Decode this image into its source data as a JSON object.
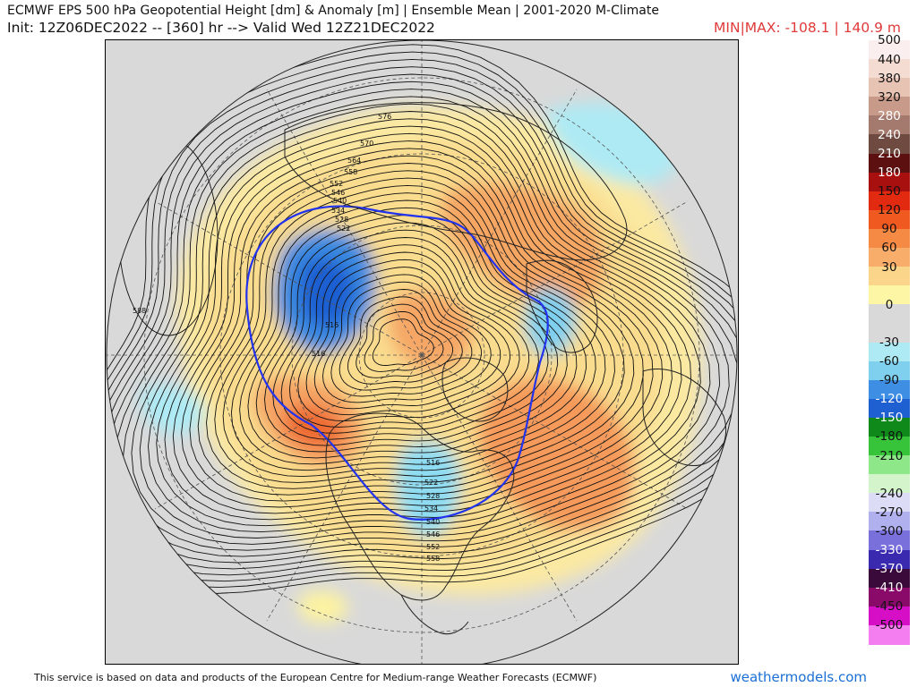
{
  "header": {
    "title": "ECMWF EPS 500 hPa Geopotential Height [dm] & Anomaly [m] | Ensemble Mean | 2001-2020 M-Climate",
    "subtitle": "Init: 12Z06DEC2022 -- [360] hr --> Valid Wed 12Z21DEC2022",
    "minmax": "MIN|MAX: -108.1 | 140.9 m"
  },
  "map": {
    "projection": "north-polar-stereographic",
    "contour_labels": [
      "576",
      "570",
      "564",
      "558",
      "552",
      "546",
      "540",
      "534",
      "528",
      "522",
      "516",
      "588",
      "516",
      "522",
      "528",
      "534",
      "540",
      "546",
      "552",
      "558",
      "516"
    ],
    "colors": {
      "background": "#d9d9d9",
      "land_outline": "#222222",
      "height_contours": "#111111",
      "zero_line": "#2233ee",
      "graticule": "#555555"
    }
  },
  "colorbar": {
    "levels": [
      {
        "label": "500",
        "color": "#fbeeee"
      },
      {
        "label": "440",
        "color": "#f4dcd2"
      },
      {
        "label": "380",
        "color": "#e7c3b4"
      },
      {
        "label": "320",
        "color": "#c89a8a"
      },
      {
        "label": "280",
        "color": "#a57a6e"
      },
      {
        "label": "240",
        "color": "#6e4a40"
      },
      {
        "label": "210",
        "color": "#5c1010"
      },
      {
        "label": "180",
        "color": "#a80f0f"
      },
      {
        "label": "150",
        "color": "#e12a10"
      },
      {
        "label": "120",
        "color": "#f0591f"
      },
      {
        "label": "90",
        "color": "#f58a45"
      },
      {
        "label": "60",
        "color": "#f8ae6a"
      },
      {
        "label": "30",
        "color": "#fbd589"
      },
      {
        "label": "",
        "color": "#fdf6a4"
      },
      {
        "label": "0",
        "color": "#d9d9d9"
      },
      {
        "label": "",
        "color": "#d9d9d9"
      },
      {
        "label": "-30",
        "color": "#aeeaf4"
      },
      {
        "label": "-60",
        "color": "#7fcfee"
      },
      {
        "label": "-90",
        "color": "#3e8fe4"
      },
      {
        "label": "-120",
        "color": "#1e5fd2"
      },
      {
        "label": "-150",
        "color": "#0f8a1a"
      },
      {
        "label": "-180",
        "color": "#38c43a"
      },
      {
        "label": "-210",
        "color": "#8ee88a"
      },
      {
        "label": "",
        "color": "#d4f4cc"
      },
      {
        "label": "-240",
        "color": "#dcdcf6"
      },
      {
        "label": "-270",
        "color": "#b0b0ee"
      },
      {
        "label": "-300",
        "color": "#7a70dc"
      },
      {
        "label": "-330",
        "color": "#3a2ab0"
      },
      {
        "label": "-370",
        "color": "#3a0a3a"
      },
      {
        "label": "-410",
        "color": "#8a0a6a"
      },
      {
        "label": "-450",
        "color": "#d60ec6"
      },
      {
        "label": "-500",
        "color": "#f47ef0"
      }
    ]
  },
  "footer": {
    "credit": "This service is based on data and products of the European Centre for Medium-range Weather Forecasts (ECMWF)",
    "site": "weathermodels.com"
  }
}
